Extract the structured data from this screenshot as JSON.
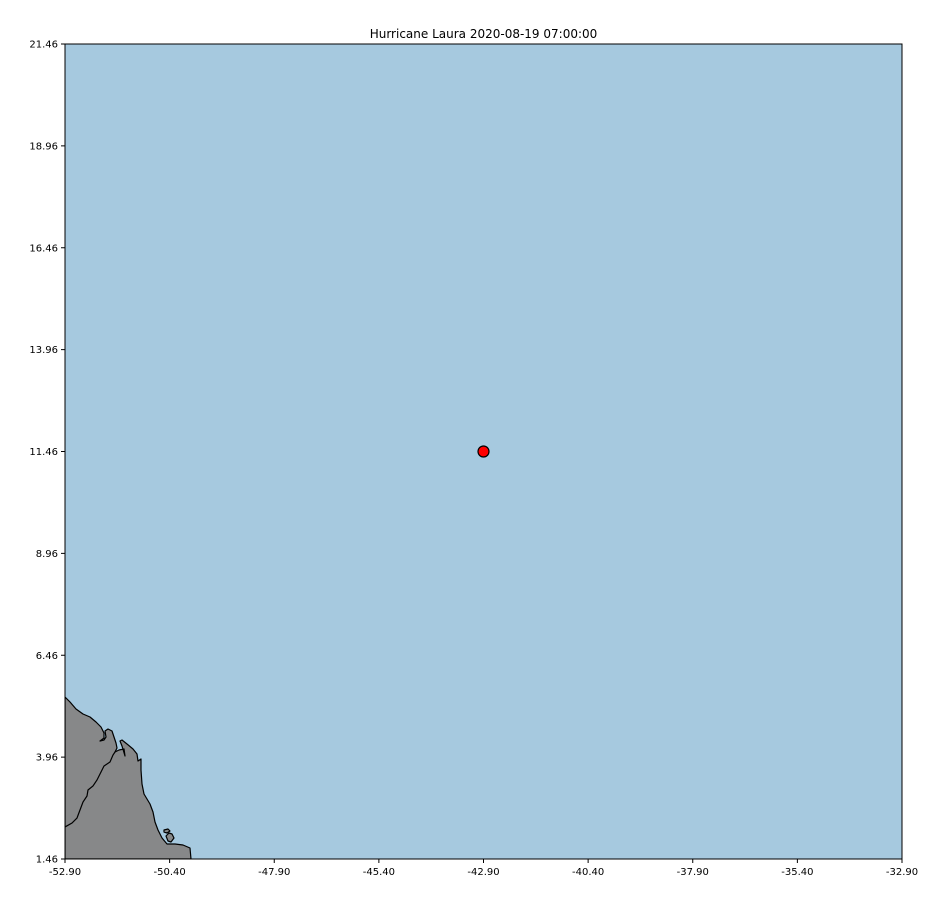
{
  "title": "Hurricane Laura 2020-08-19 07:00:00",
  "colors": {
    "ocean": "#a6c9df",
    "land": "#878889",
    "coastline": "#000000",
    "marker_fill": "#ff0000",
    "marker_edge": "#000000"
  },
  "map": {
    "xlim": [
      -52.9,
      -32.9
    ],
    "ylim": [
      1.46,
      21.46
    ],
    "x_ticks": [
      "-52.90",
      "-50.40",
      "-47.90",
      "-45.40",
      "-42.90",
      "-40.40",
      "-37.90",
      "-35.40",
      "-32.90"
    ],
    "y_ticks": [
      "1.46",
      "3.96",
      "6.46",
      "8.96",
      "11.46",
      "13.96",
      "16.46",
      "18.96",
      "21.46"
    ],
    "storm_position": {
      "lon": -42.9,
      "lat": 11.46
    }
  }
}
